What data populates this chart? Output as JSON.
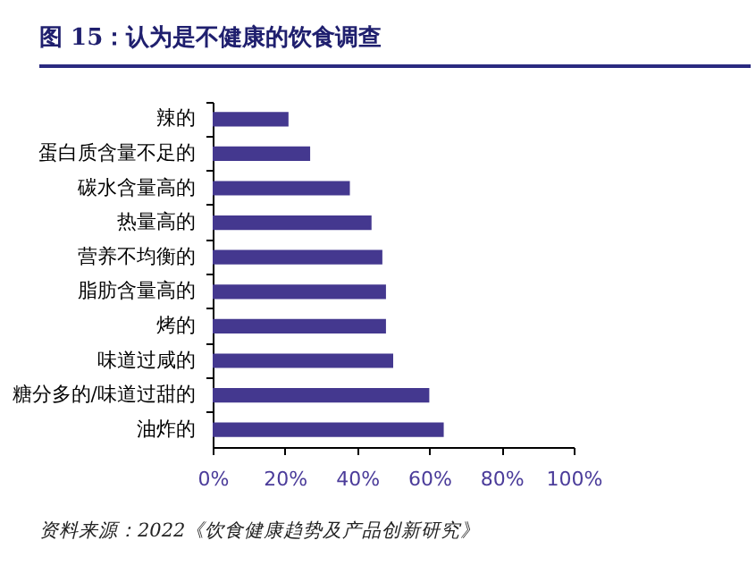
{
  "chart_data": {
    "type": "bar",
    "orientation": "horizontal",
    "title": "图 15：认为是不健康的饮食调查",
    "categories": [
      "辣的",
      "蛋白质含量不足的",
      "碳水含量高的",
      "热量高的",
      "营养不均衡的",
      "脂肪含量高的",
      "烤的",
      "味道过咸的",
      "糖分多的/味道过甜的",
      "油炸的"
    ],
    "values": [
      21,
      27,
      38,
      44,
      47,
      48,
      48,
      50,
      60,
      64
    ],
    "color": "#44388f",
    "xlim": [
      0,
      100
    ],
    "xticks": [
      {
        "value": 0,
        "label": "0%"
      },
      {
        "value": 20,
        "label": "20%"
      },
      {
        "value": 40,
        "label": "40%"
      },
      {
        "value": 60,
        "label": "60%"
      },
      {
        "value": 80,
        "label": "80%"
      },
      {
        "value": 100,
        "label": "100%"
      }
    ],
    "grid": false,
    "annotations": [
      "资料来源：2022《饮食健康趋势及产品创新研究》"
    ]
  }
}
